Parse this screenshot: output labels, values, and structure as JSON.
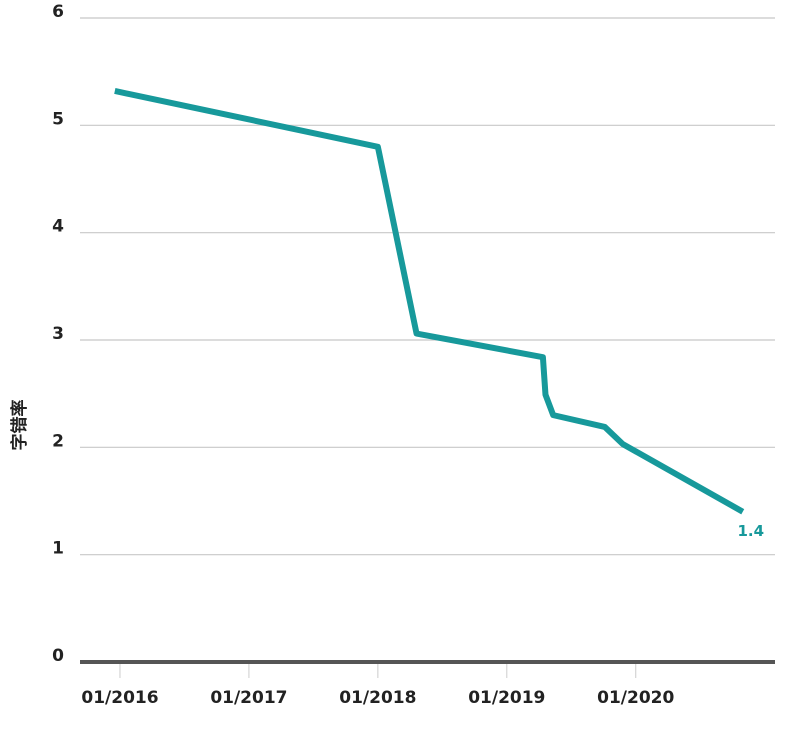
{
  "chart_data": {
    "type": "line",
    "y_label": "字错率",
    "x": [
      2015.96,
      2018.0,
      2018.3,
      2019.28,
      2019.3,
      2019.36,
      2019.76,
      2019.9,
      2020.83
    ],
    "values": [
      5.32,
      4.8,
      3.06,
      2.84,
      2.49,
      2.3,
      2.19,
      2.03,
      1.4
    ],
    "color": "#17999b",
    "xlim": [
      2015.69,
      2021.08
    ],
    "xticks": [
      {
        "value": 2016,
        "label": "01/2016"
      },
      {
        "value": 2017,
        "label": "01/2017"
      },
      {
        "value": 2018,
        "label": "01/2018"
      },
      {
        "value": 2019,
        "label": "01/2019"
      },
      {
        "value": 2020,
        "label": "01/2020"
      }
    ],
    "ylim": [
      0,
      6
    ],
    "yticks": [
      0,
      1,
      2,
      3,
      4,
      5,
      6
    ],
    "grid": true
  }
}
